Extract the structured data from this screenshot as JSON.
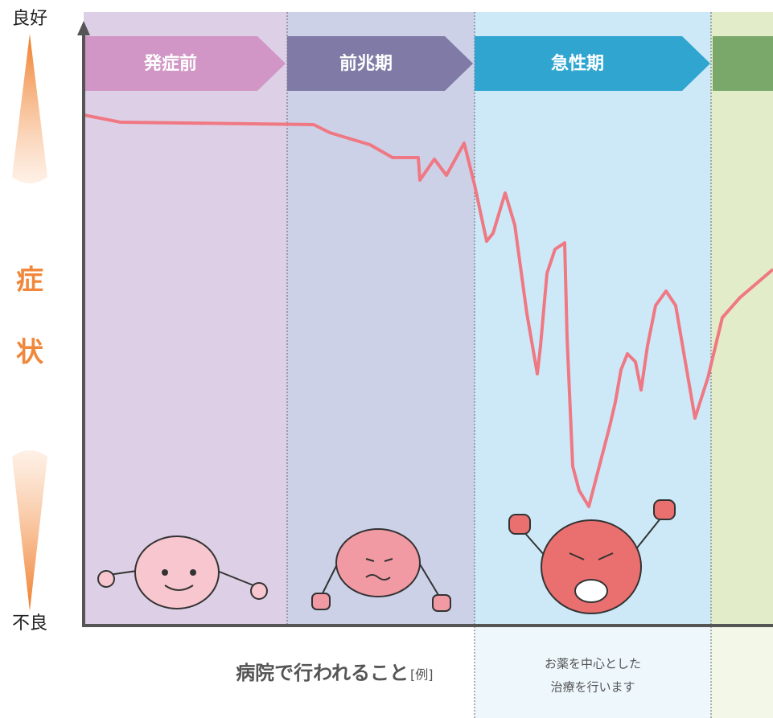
{
  "axis": {
    "top": "良好",
    "label": [
      "症",
      "状"
    ],
    "bottom": "不良"
  },
  "phases": [
    {
      "label": "発症前"
    },
    {
      "label": "前兆期"
    },
    {
      "label": "急性期"
    }
  ],
  "footer": {
    "title": "病院で行われること",
    "note": "[例]",
    "treatment": [
      "お薬を中心とした",
      "治療を行います"
    ]
  }
}
